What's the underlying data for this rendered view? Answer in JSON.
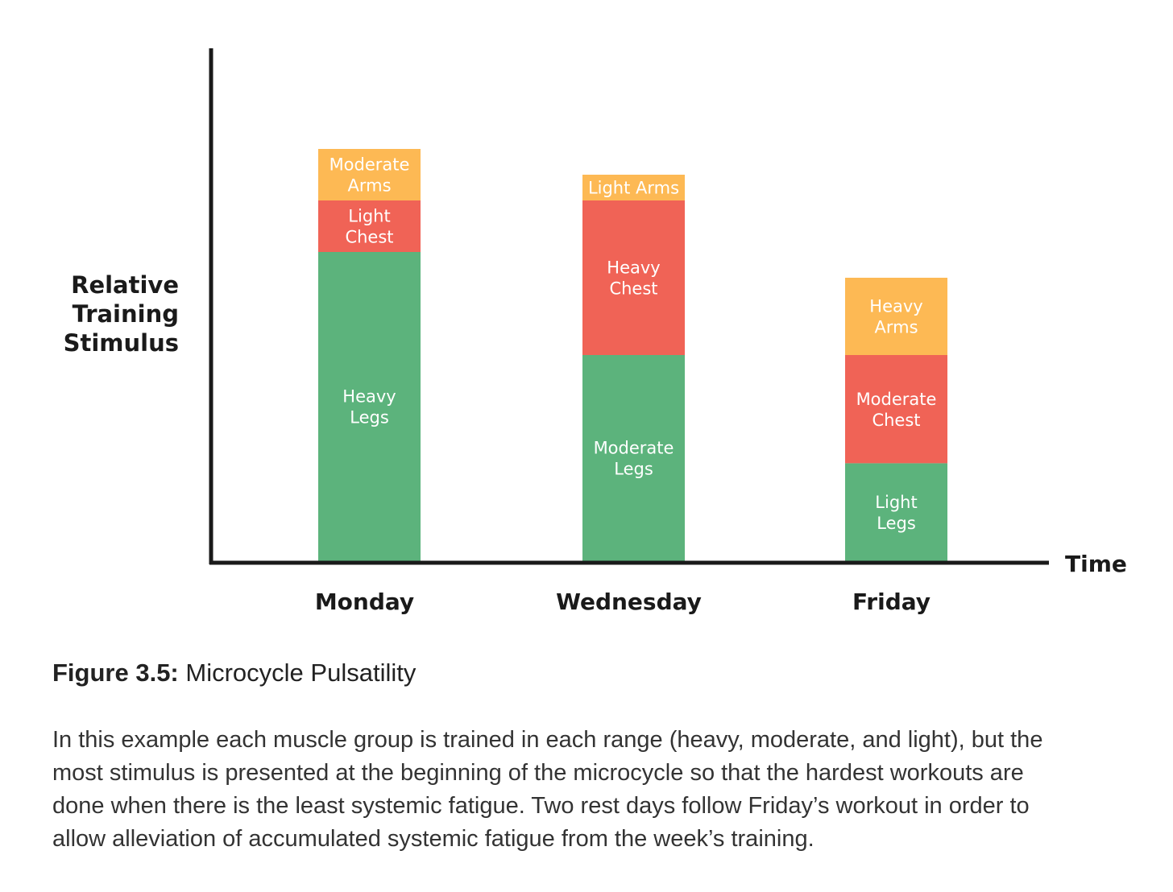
{
  "chart_data": {
    "type": "bar",
    "stacked": true,
    "categories": [
      "Monday",
      "Wednesday",
      "Friday"
    ],
    "ylabel_lines": [
      "Relative",
      "Training",
      "Stimulus"
    ],
    "xlabel": "Time",
    "y_ticks_shown": false,
    "grid": false,
    "ylim": [
      0,
      10
    ],
    "colors": {
      "legs": "#5cb37c",
      "chest": "#f06356",
      "arms": "#fdb954",
      "axis": "#1a1a1a"
    },
    "stacks": [
      {
        "category": "Monday",
        "segments": [
          {
            "group": "legs",
            "value": 6.0,
            "label_lines": [
              "Heavy",
              "Legs"
            ]
          },
          {
            "group": "chest",
            "value": 1.0,
            "label_lines": [
              "Light",
              "Chest"
            ]
          },
          {
            "group": "arms",
            "value": 1.0,
            "label_lines": [
              "Moderate",
              "Arms"
            ]
          }
        ]
      },
      {
        "category": "Wednesday",
        "segments": [
          {
            "group": "legs",
            "value": 4.0,
            "label_lines": [
              "Moderate",
              "Legs"
            ]
          },
          {
            "group": "chest",
            "value": 3.0,
            "label_lines": [
              "Heavy",
              "Chest"
            ]
          },
          {
            "group": "arms",
            "value": 0.5,
            "label_lines": [
              "Light Arms"
            ]
          }
        ]
      },
      {
        "category": "Friday",
        "segments": [
          {
            "group": "legs",
            "value": 1.9,
            "label_lines": [
              "Light",
              "Legs"
            ]
          },
          {
            "group": "chest",
            "value": 2.1,
            "label_lines": [
              "Moderate",
              "Chest"
            ]
          },
          {
            "group": "arms",
            "value": 1.5,
            "label_lines": [
              "Heavy",
              "Arms"
            ]
          }
        ]
      }
    ]
  },
  "caption": {
    "label": "Figure 3.5:",
    "title": "Microcycle Pulsatility"
  },
  "description_lines": [
    "In this example each muscle group is trained in each range (heavy, moderate, and light), but the",
    "most stimulus is presented at the beginning of the microcycle so that the hardest workouts are",
    "done when there is the least systemic fatigue. Two rest days follow Friday’s workout in order to",
    "allow alleviation of accumulated systemic fatigue from the week’s training."
  ]
}
